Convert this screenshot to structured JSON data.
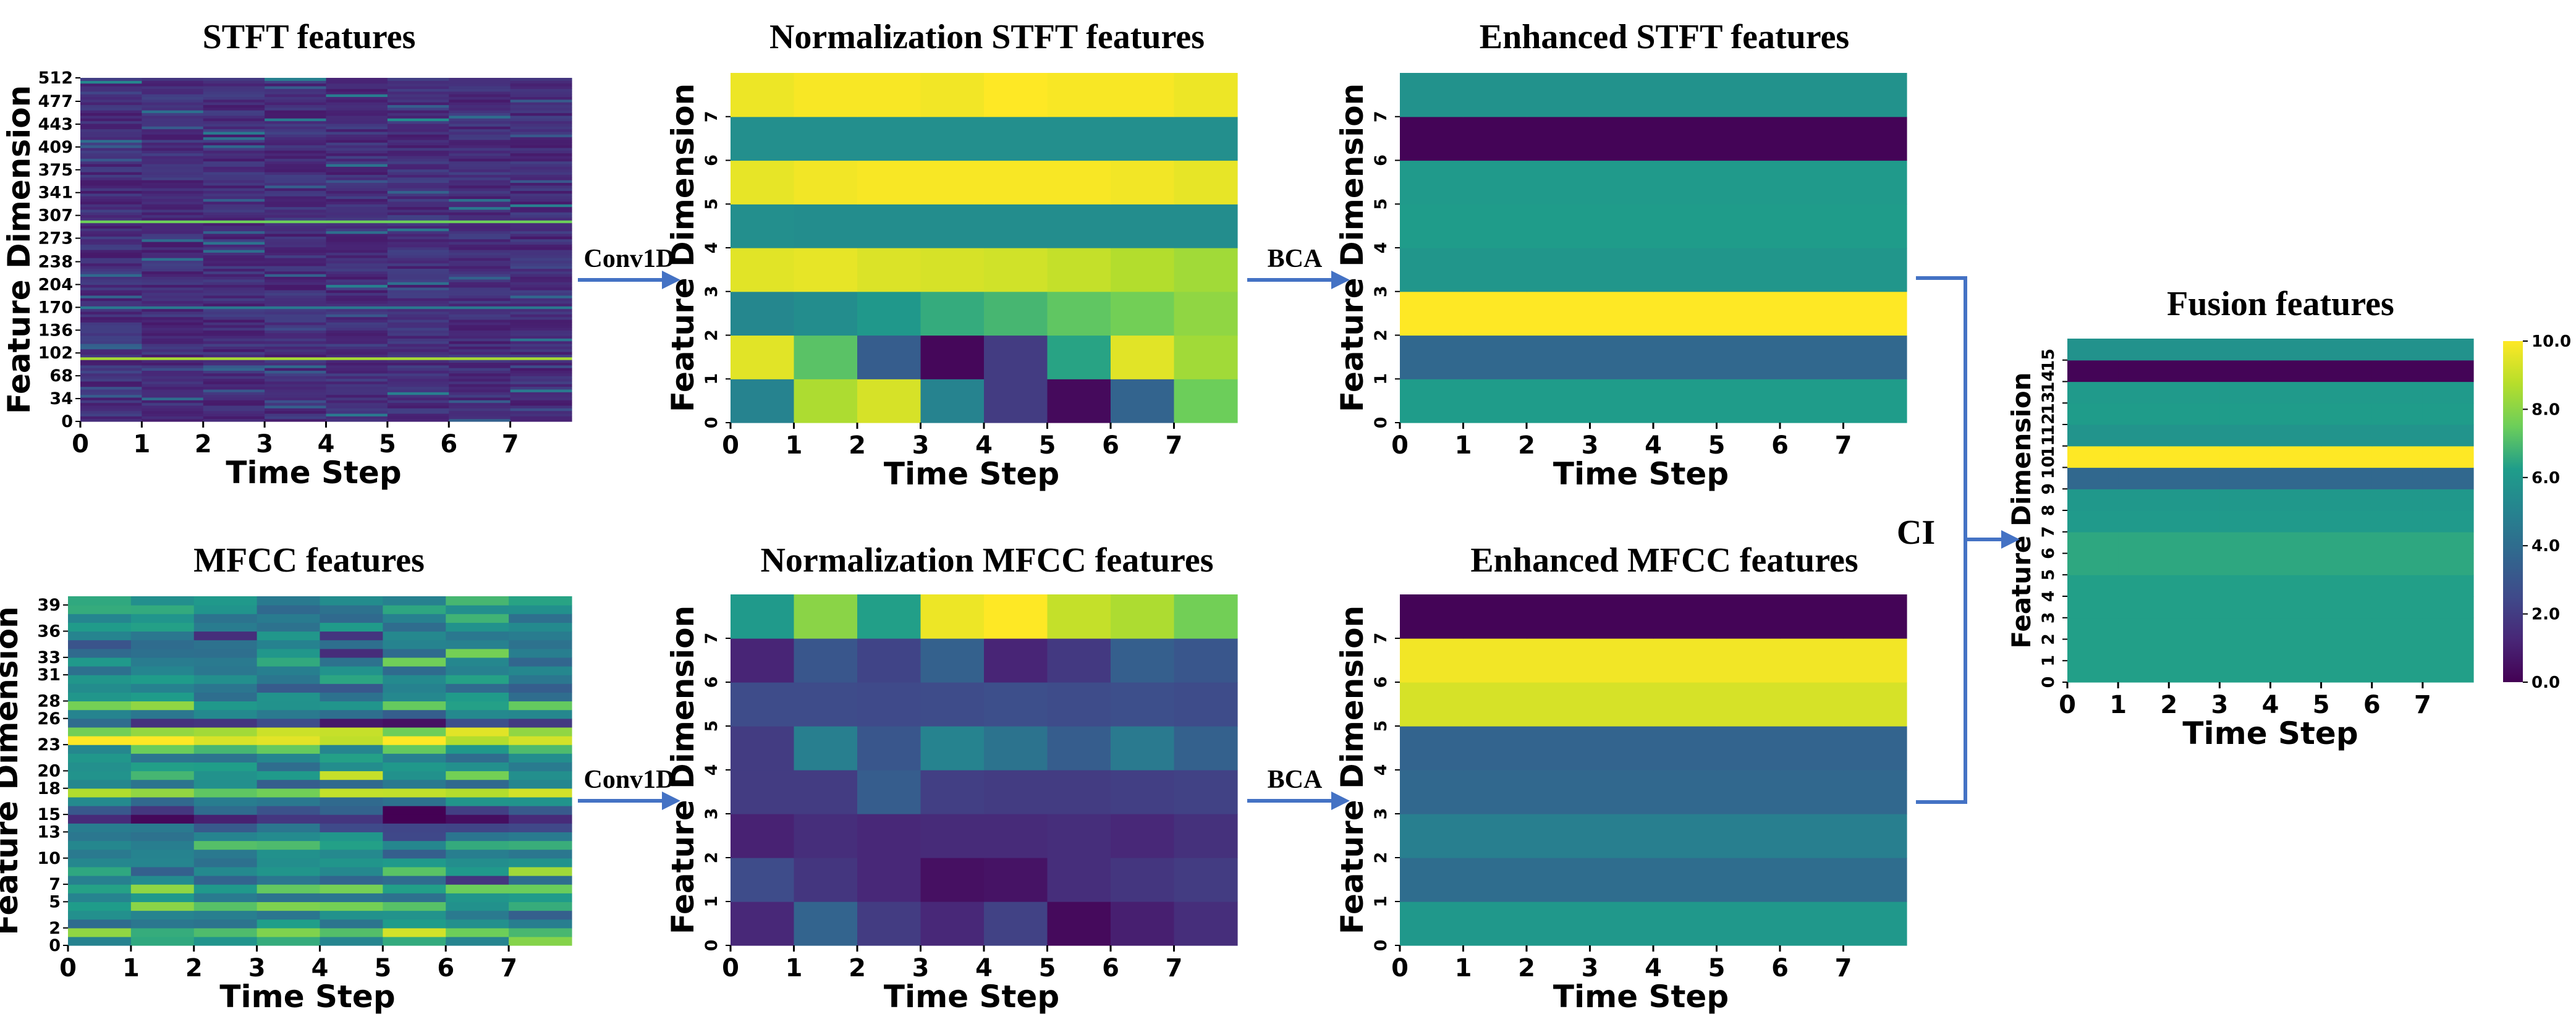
{
  "colors": {
    "arrow": "#4472c4",
    "colormap": [
      "#440154",
      "#482777",
      "#3f4a8a",
      "#31678e",
      "#26838f",
      "#1f9d8a",
      "#6cce5a",
      "#b6de2b",
      "#fee825"
    ]
  },
  "labels": {
    "x_axis": "Time Step",
    "y_axis": "Feature Dimension",
    "arrows": {
      "conv1d_top": "Conv1D",
      "conv1d_bottom": "Conv1D",
      "bca_top": "BCA",
      "bca_bottom": "BCA",
      "ci": "CI"
    }
  },
  "chart_data": [
    {
      "id": "stft",
      "type": "heatmap",
      "title": "STFT features",
      "xlabel": "Time Step",
      "ylabel": "Feature Dimension",
      "xticks": [
        "0",
        "1",
        "2",
        "3",
        "4",
        "5",
        "6",
        "7"
      ],
      "yticks": [
        "0",
        "34",
        "68",
        "102",
        "136",
        "170",
        "204",
        "238",
        "273",
        "307",
        "341",
        "375",
        "409",
        "443",
        "477",
        "512"
      ],
      "ytick_values": [
        0,
        34,
        68,
        102,
        136,
        170,
        204,
        238,
        273,
        307,
        341,
        375,
        409,
        443,
        477,
        512
      ],
      "ylim": [
        0,
        512
      ],
      "cols": 8,
      "rows": 128,
      "base_value": 0.8,
      "seed": 7,
      "highlight_bands": [
        {
          "y": 93,
          "value": 8.5
        },
        {
          "y": 297,
          "value": 7.5
        },
        {
          "y": 170,
          "value": 4.5
        }
      ]
    },
    {
      "id": "norm_stft",
      "type": "heatmap",
      "title": "Normalization STFT features",
      "xlabel": "Time Step",
      "ylabel": "Feature Dimension",
      "xticks": [
        "0",
        "1",
        "2",
        "3",
        "4",
        "5",
        "6",
        "7"
      ],
      "yticks": [
        "0",
        "1",
        "2",
        "3",
        "4",
        "5",
        "6",
        "7"
      ],
      "ylim": [
        0,
        8
      ],
      "values": [
        [
          5.0,
          8.6,
          9.3,
          5.0,
          2.0,
          0.3,
          3.6,
          7.5
        ],
        [
          9.5,
          7.2,
          3.3,
          0.2,
          2.0,
          6.4,
          9.5,
          8.4
        ],
        [
          5.2,
          5.5,
          6.0,
          6.6,
          6.9,
          7.3,
          7.6,
          8.1
        ],
        [
          9.5,
          9.6,
          9.4,
          9.3,
          9.2,
          9.0,
          8.7,
          8.4
        ],
        [
          5.6,
          5.5,
          5.5,
          5.5,
          5.5,
          5.5,
          5.5,
          5.5
        ],
        [
          9.6,
          9.8,
          9.9,
          9.9,
          9.9,
          9.9,
          9.8,
          9.6
        ],
        [
          5.6,
          5.6,
          5.6,
          5.6,
          5.6,
          5.6,
          5.6,
          5.6
        ],
        [
          9.7,
          9.9,
          9.9,
          9.8,
          10.0,
          9.9,
          9.9,
          9.7
        ]
      ]
    },
    {
      "id": "enh_stft",
      "type": "heatmap",
      "title": "Enhanced STFT features",
      "xlabel": "Time Step",
      "ylabel": "Feature Dimension",
      "xticks": [
        "0",
        "1",
        "2",
        "3",
        "4",
        "5",
        "6",
        "7"
      ],
      "yticks": [
        "0",
        "1",
        "2",
        "3",
        "4",
        "5",
        "6",
        "7"
      ],
      "ylim": [
        0,
        8
      ],
      "row_values": [
        6.2,
        3.8,
        10.0,
        5.9,
        6.2,
        6.1,
        0.1,
        5.7
      ]
    },
    {
      "id": "mfcc",
      "type": "heatmap",
      "title": "MFCC features",
      "xlabel": "Time Step",
      "ylabel": "Feature Dimension",
      "xticks": [
        "0",
        "1",
        "2",
        "3",
        "4",
        "5",
        "6",
        "7"
      ],
      "yticks": [
        "0",
        "2",
        "5",
        "7",
        "10",
        "13",
        "15",
        "18",
        "20",
        "23",
        "26",
        "28",
        "31",
        "33",
        "36",
        "39"
      ],
      "ytick_values": [
        0,
        2,
        5,
        7,
        10,
        13,
        15,
        18,
        20,
        23,
        26,
        28,
        31,
        33,
        36,
        39
      ],
      "ylim": [
        0,
        40
      ],
      "cols": 8,
      "rows": 40,
      "row_values": [
        5.4,
        7.5,
        5.2,
        4.6,
        6.8,
        5.0,
        7.0,
        4.8,
        6.5,
        5.3,
        4.2,
        6.4,
        5.4,
        3.6,
        1.2,
        2.8,
        4.9,
        8.0,
        4.6,
        6.6,
        5.2,
        5.3,
        6.2,
        9.8,
        8.4,
        1.6,
        4.2,
        6.9,
        5.3,
        4.3,
        5.6,
        4.3,
        5.1,
        4.9,
        3.9,
        4.7,
        5.2,
        4.7,
        5.4,
        5.6
      ],
      "seed": 3
    },
    {
      "id": "norm_mfcc",
      "type": "heatmap",
      "title": "Normalization MFCC features",
      "xlabel": "Time Step",
      "ylabel": "Feature Dimension",
      "xticks": [
        "0",
        "1",
        "2",
        "3",
        "4",
        "5",
        "6",
        "7"
      ],
      "yticks": [
        "0",
        "1",
        "2",
        "3",
        "4",
        "5",
        "6",
        "7"
      ],
      "ylim": [
        0,
        8
      ],
      "values": [
        [
          1.3,
          3.6,
          2.0,
          1.3,
          2.2,
          0.3,
          1.0,
          1.5
        ],
        [
          2.6,
          1.8,
          1.3,
          0.5,
          0.6,
          1.5,
          1.8,
          2.0
        ],
        [
          1.1,
          1.5,
          1.3,
          1.4,
          1.4,
          1.5,
          1.3,
          1.6
        ],
        [
          2.0,
          2.0,
          3.3,
          2.1,
          2.0,
          2.0,
          2.1,
          2.2
        ],
        [
          2.0,
          4.8,
          3.0,
          5.0,
          4.3,
          3.3,
          4.6,
          3.5
        ],
        [
          2.6,
          2.6,
          2.5,
          2.6,
          2.7,
          2.6,
          2.7,
          2.6
        ],
        [
          1.2,
          3.0,
          2.3,
          3.5,
          1.2,
          1.9,
          3.4,
          3.0
        ],
        [
          6.1,
          8.0,
          6.3,
          9.7,
          10.0,
          9.0,
          8.6,
          7.6
        ]
      ]
    },
    {
      "id": "enh_mfcc",
      "type": "heatmap",
      "title": "Enhanced MFCC features",
      "xlabel": "Time Step",
      "ylabel": "Feature Dimension",
      "xticks": [
        "0",
        "1",
        "2",
        "3",
        "4",
        "5",
        "6",
        "7"
      ],
      "yticks": [
        "0",
        "1",
        "2",
        "3",
        "4",
        "5",
        "6",
        "7"
      ],
      "ylim": [
        0,
        8
      ],
      "row_values": [
        6.0,
        4.0,
        4.8,
        3.8,
        3.6,
        9.3,
        9.8,
        0.1
      ]
    },
    {
      "id": "fusion",
      "type": "heatmap",
      "title": "Fusion features",
      "xlabel": "Time Step",
      "ylabel": "Feature Dimension",
      "xticks": [
        "0",
        "1",
        "2",
        "3",
        "4",
        "5",
        "6",
        "7"
      ],
      "yticks": [
        "0",
        "1",
        "2",
        "3",
        "4",
        "5",
        "6",
        "7",
        "8",
        "9",
        "10",
        "11",
        "12",
        "13",
        "14",
        "15"
      ],
      "ylim": [
        0,
        16
      ],
      "row_values": [
        6.3,
        6.3,
        6.3,
        6.3,
        6.3,
        6.5,
        6.5,
        6.1,
        6.0,
        3.8,
        10.0,
        5.8,
        6.2,
        6.1,
        0.1,
        5.7
      ],
      "colorbar": {
        "min": 0,
        "max": 10,
        "ticks": [
          "0.0",
          "2.0",
          "4.0",
          "6.0",
          "8.0",
          "10.0"
        ],
        "tick_values": [
          0,
          2,
          4,
          6,
          8,
          10
        ]
      }
    }
  ]
}
